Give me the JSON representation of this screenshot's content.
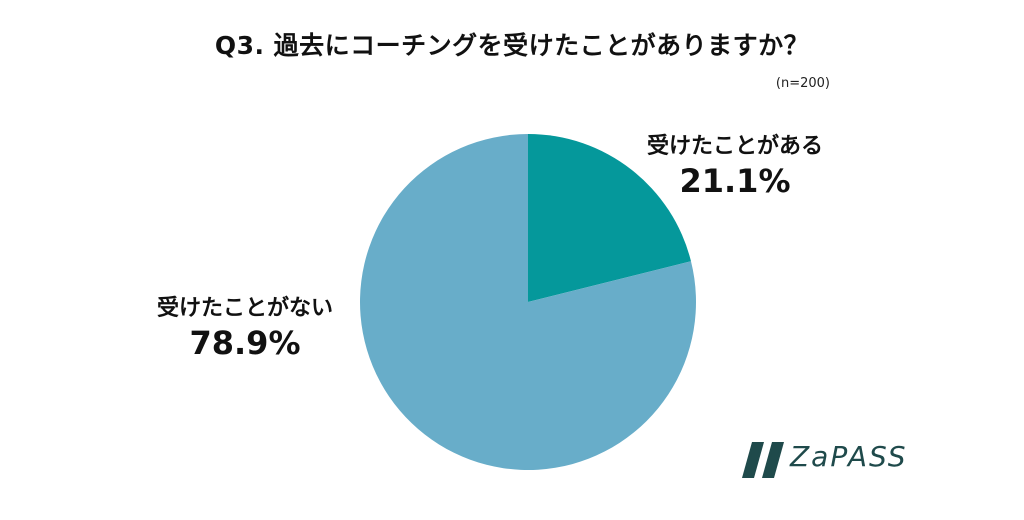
{
  "chart_data": {
    "type": "pie",
    "title": "Q3. 過去にコーチングを受けたことがありますか？",
    "sample_size": "(n=200)",
    "slices": [
      {
        "label": "受けたことがある",
        "value": 21.1,
        "value_label": "21.1%",
        "color": "#05989b"
      },
      {
        "label": "受けたことがない",
        "value": 78.9,
        "value_label": "78.9%",
        "color": "#68adc9"
      }
    ]
  },
  "brand": {
    "name": "ZaPASS",
    "color": "#1f4a4b"
  }
}
